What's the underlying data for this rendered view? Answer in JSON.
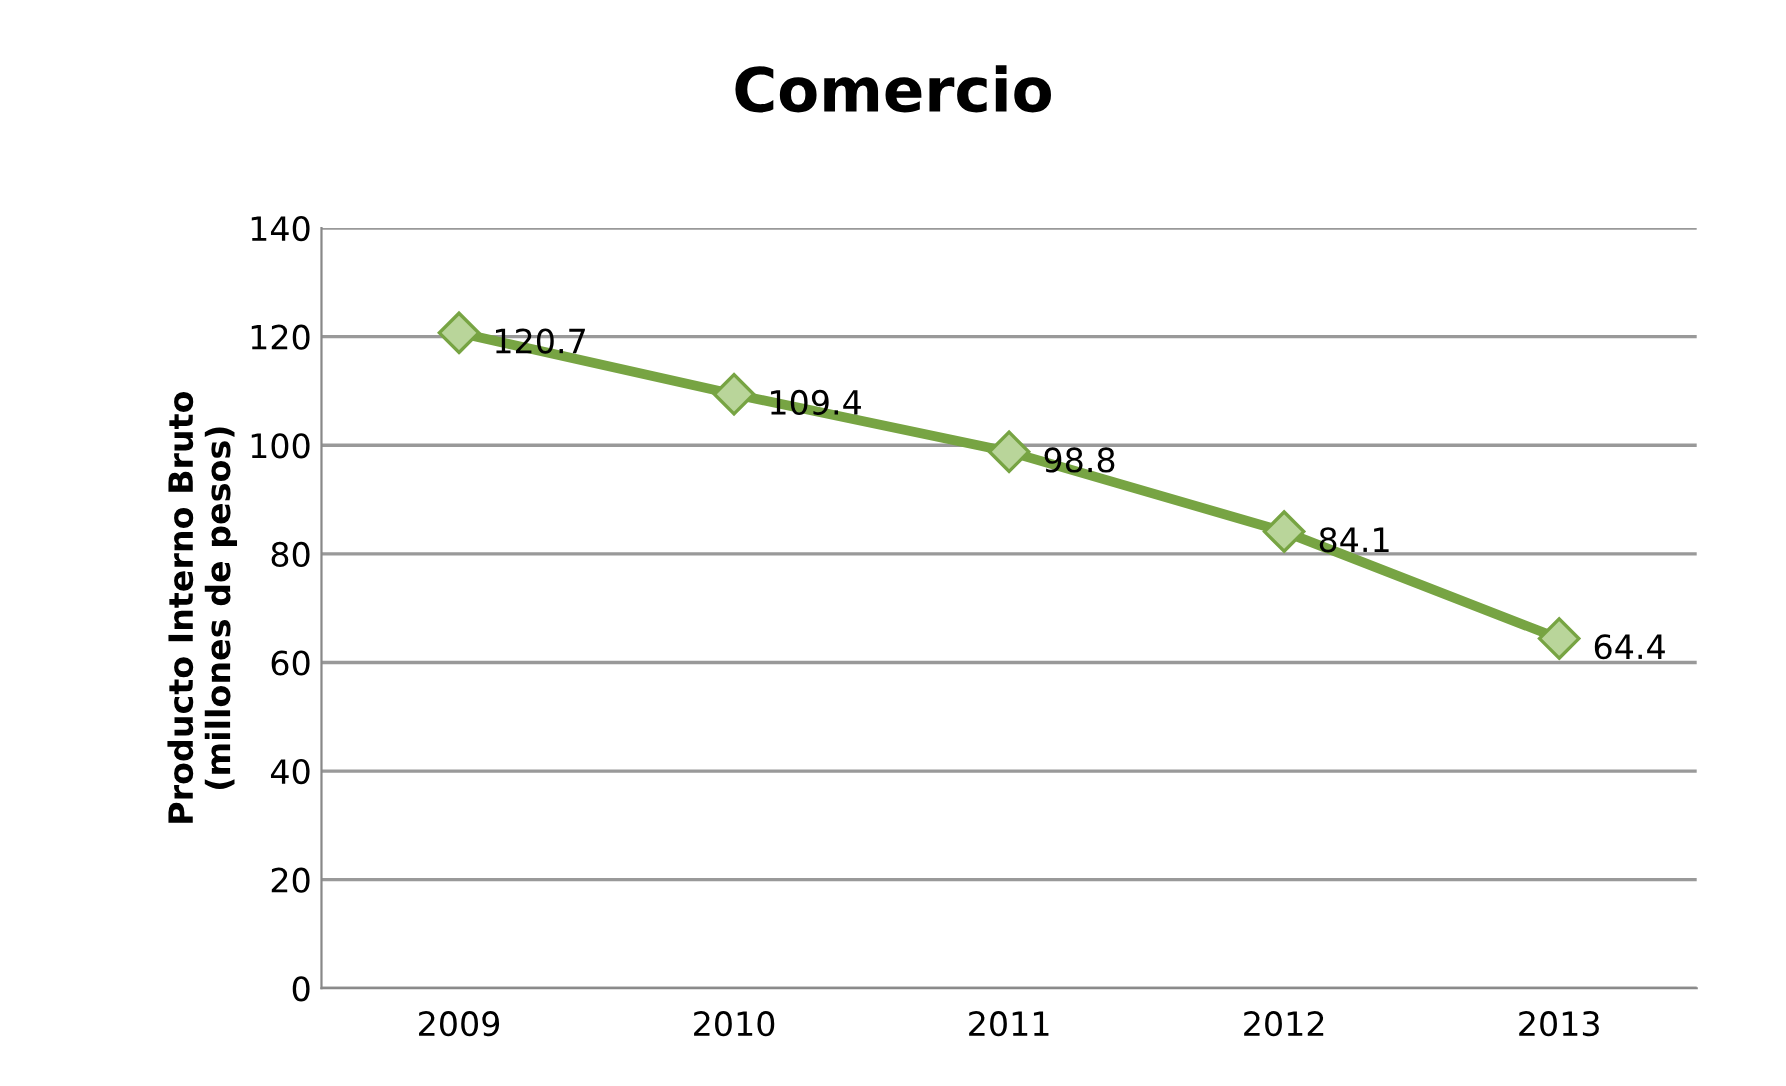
{
  "chart_data": {
    "type": "line",
    "title": "Comercio",
    "ylabel": "Producto Interno Bruto\n(millones de pesos)",
    "categories": [
      "2009",
      "2010",
      "2011",
      "2012",
      "2013"
    ],
    "series": [
      {
        "color": "#77a443",
        "values": [
          120.7,
          109.4,
          98.8,
          84.1,
          64.4
        ]
      }
    ],
    "ylim": [
      0,
      140
    ],
    "yticks": [
      0,
      20,
      40,
      60,
      80,
      100,
      120,
      140
    ],
    "grid": "y",
    "marker": "diamond",
    "line_style": "solid",
    "data_labels": true
  }
}
